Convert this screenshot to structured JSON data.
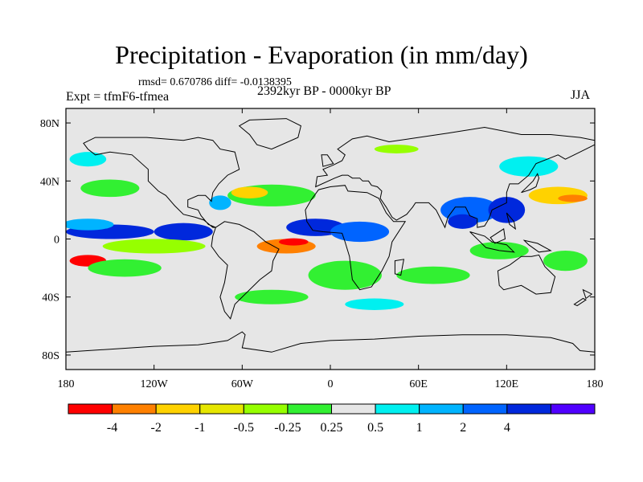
{
  "chart_data": {
    "type": "heatmap",
    "title": "Precipitation - Evaporation (in mm/day)",
    "stats": "rmsd= 0.670786 diff= -0.0138395",
    "experiment": "Expt = tfmF6-tfmea",
    "period": "2392kyr BP - 0000kyr BP",
    "season": "JJA",
    "x_ticks": [
      "180",
      "120W",
      "60W",
      "0",
      "60E",
      "120E",
      "180"
    ],
    "x_tick_values": [
      -180,
      -120,
      -60,
      0,
      60,
      120,
      180
    ],
    "y_ticks": [
      "80N",
      "40N",
      "0",
      "40S",
      "80S"
    ],
    "y_tick_values": [
      80,
      40,
      0,
      -40,
      -80
    ],
    "xlim": [
      -180,
      180
    ],
    "ylim": [
      -90,
      90
    ],
    "colorbar": {
      "colors": [
        "#ff0000",
        "#ff8000",
        "#ffd200",
        "#e6e600",
        "#96ff00",
        "#32f032",
        "#e6e6e6",
        "#00f0f0",
        "#00b4ff",
        "#0064ff",
        "#0028dc",
        "#5000ff"
      ],
      "labels": [
        "-4",
        "-2",
        "-1",
        "-0.5",
        "-0.25",
        "0.25",
        "0.5",
        "1",
        "2",
        "4"
      ],
      "levels": [
        -4,
        -2,
        -1,
        -0.5,
        -0.25,
        0.25,
        0.5,
        1,
        2,
        4
      ]
    },
    "background_color": "#e6e6e6",
    "regions": [
      {
        "lon": -150,
        "lat": 5,
        "w": 60,
        "h": 10,
        "level": 10
      },
      {
        "lon": -100,
        "lat": 5,
        "w": 40,
        "h": 12,
        "level": 10
      },
      {
        "lon": -165,
        "lat": 10,
        "w": 35,
        "h": 8,
        "level": 8
      },
      {
        "lon": -120,
        "lat": -5,
        "w": 70,
        "h": 10,
        "level": 4
      },
      {
        "lon": -165,
        "lat": -15,
        "w": 25,
        "h": 8,
        "level": 0
      },
      {
        "lon": -140,
        "lat": -20,
        "w": 50,
        "h": 12,
        "level": 5
      },
      {
        "lon": -30,
        "lat": -5,
        "w": 40,
        "h": 10,
        "level": 1
      },
      {
        "lon": -25,
        "lat": -2,
        "w": 20,
        "h": 5,
        "level": 0
      },
      {
        "lon": -10,
        "lat": 8,
        "w": 40,
        "h": 12,
        "level": 10
      },
      {
        "lon": 20,
        "lat": 5,
        "w": 40,
        "h": 14,
        "level": 9
      },
      {
        "lon": 10,
        "lat": -25,
        "w": 50,
        "h": 20,
        "level": 5
      },
      {
        "lon": -40,
        "lat": 30,
        "w": 60,
        "h": 15,
        "level": 5
      },
      {
        "lon": -55,
        "lat": 32,
        "w": 25,
        "h": 8,
        "level": 2
      },
      {
        "lon": -75,
        "lat": 25,
        "w": 15,
        "h": 10,
        "level": 8
      },
      {
        "lon": -150,
        "lat": 35,
        "w": 40,
        "h": 12,
        "level": 5
      },
      {
        "lon": -165,
        "lat": 55,
        "w": 25,
        "h": 10,
        "level": 7
      },
      {
        "lon": 45,
        "lat": 62,
        "w": 30,
        "h": 6,
        "level": 4
      },
      {
        "lon": 95,
        "lat": 20,
        "w": 40,
        "h": 18,
        "level": 9
      },
      {
        "lon": 90,
        "lat": 12,
        "w": 20,
        "h": 10,
        "level": 10
      },
      {
        "lon": 120,
        "lat": 20,
        "w": 25,
        "h": 18,
        "level": 10
      },
      {
        "lon": 155,
        "lat": 30,
        "w": 40,
        "h": 12,
        "level": 2
      },
      {
        "lon": 165,
        "lat": 28,
        "w": 20,
        "h": 5,
        "level": 1
      },
      {
        "lon": 135,
        "lat": 50,
        "w": 40,
        "h": 14,
        "level": 7
      },
      {
        "lon": 115,
        "lat": -8,
        "w": 40,
        "h": 12,
        "level": 5
      },
      {
        "lon": 70,
        "lat": -25,
        "w": 50,
        "h": 12,
        "level": 5
      },
      {
        "lon": -40,
        "lat": -40,
        "w": 50,
        "h": 10,
        "level": 5
      },
      {
        "lon": 30,
        "lat": -45,
        "w": 40,
        "h": 8,
        "level": 7
      },
      {
        "lon": 160,
        "lat": -15,
        "w": 30,
        "h": 14,
        "level": 5
      }
    ]
  }
}
